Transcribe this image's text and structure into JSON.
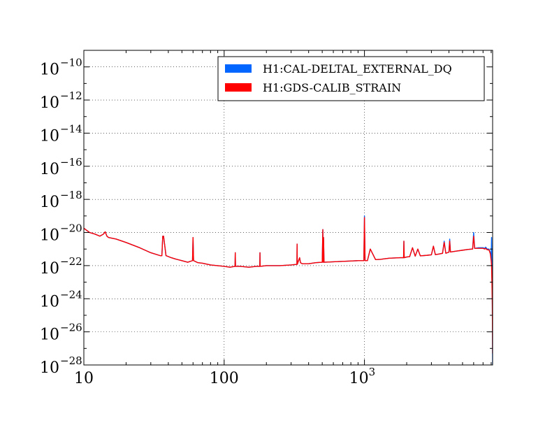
{
  "chart_data": {
    "type": "line",
    "title": "",
    "xlabel": "",
    "ylabel": "",
    "x_scale": "log",
    "y_scale": "log",
    "xlim": [
      10,
      8192
    ],
    "ylim": [
      1e-28,
      1e-09
    ],
    "grid": true,
    "legend_position": "top-right",
    "x_ticks": [
      {
        "value": 10,
        "label": "10",
        "exp": ""
      },
      {
        "value": 100,
        "label": "100",
        "exp": ""
      },
      {
        "value": 1000,
        "label": "10",
        "exp": "3"
      }
    ],
    "y_ticks": [
      {
        "value": 1e-10,
        "label": "10",
        "exp": "−10"
      },
      {
        "value": 1e-12,
        "label": "10",
        "exp": "−12"
      },
      {
        "value": 1e-14,
        "label": "10",
        "exp": "−14"
      },
      {
        "value": 1e-16,
        "label": "10",
        "exp": "−16"
      },
      {
        "value": 1e-18,
        "label": "10",
        "exp": "−18"
      },
      {
        "value": 1e-20,
        "label": "10",
        "exp": "−20"
      },
      {
        "value": 1e-22,
        "label": "10",
        "exp": "−22"
      },
      {
        "value": 1e-24,
        "label": "10",
        "exp": "−24"
      },
      {
        "value": 1e-26,
        "label": "10",
        "exp": "−26"
      },
      {
        "value": 1e-28,
        "label": "10",
        "exp": "−28"
      }
    ],
    "series": [
      {
        "name": "H1:CAL-DELTAL_EXTERNAL_DQ",
        "color": "#0066ff",
        "x": [
          10,
          11,
          12,
          13,
          13.8,
          14.2,
          14.6,
          15,
          17,
          20,
          25,
          30,
          35,
          36,
          36.5,
          37,
          37.6,
          38.5,
          42,
          45,
          50,
          55,
          59.5,
          60,
          60.5,
          65,
          70,
          80,
          100,
          110,
          119.5,
          120,
          120.5,
          130,
          150,
          170,
          179.5,
          180,
          180.5,
          200,
          250,
          300,
          330,
          331,
          332,
          345,
          350,
          360,
          400,
          450,
          500,
          505,
          508,
          511,
          515,
          600,
          700,
          800,
          900,
          990,
          1000,
          1010,
          1050,
          1100,
          1200,
          1300,
          1400,
          1500,
          1800,
          1900,
          1910,
          1920,
          2000,
          2100,
          2200,
          2300,
          2400,
          2500,
          2800,
          3000,
          3100,
          3200,
          3400,
          3600,
          3700,
          3800,
          4000,
          4050,
          4100,
          4500,
          5000,
          5500,
          5900,
          6000,
          6100,
          6500,
          7000,
          7200,
          7300,
          7500,
          7700,
          7800,
          7900,
          8000,
          8050,
          8100,
          8150,
          8192
        ],
        "y": [
          1.8e-20,
          1e-20,
          8e-21,
          6e-21,
          8e-21,
          1.1e-20,
          6e-21,
          5e-21,
          4e-21,
          2.5e-21,
          1.2e-21,
          6e-22,
          4e-22,
          4e-22,
          6e-21,
          6e-21,
          2e-21,
          4e-22,
          3e-22,
          2.5e-22,
          2e-22,
          1.6e-22,
          2e-22,
          5e-21,
          2e-22,
          1.5e-22,
          1.4e-22,
          1.1e-22,
          9e-23,
          8e-23,
          9e-23,
          6e-22,
          9e-23,
          9e-23,
          8e-23,
          9e-23,
          9e-23,
          6e-22,
          9e-23,
          1e-22,
          1e-22,
          1.1e-22,
          1.2e-22,
          2e-21,
          1.2e-22,
          3e-22,
          1.5e-22,
          1.3e-22,
          1.3e-22,
          1.5e-22,
          1.6e-22,
          1.5e-20,
          1.6e-22,
          5e-21,
          1.6e-22,
          1.7e-22,
          1.8e-22,
          1.9e-22,
          2e-22,
          2e-22,
          1e-19,
          2e-22,
          2e-22,
          1e-21,
          2.3e-22,
          2.4e-22,
          2.6e-22,
          2.8e-22,
          3e-22,
          3e-22,
          3e-21,
          3e-22,
          3.3e-22,
          3.5e-22,
          1.2e-21,
          3.7e-22,
          1e-21,
          3.9e-22,
          4.2e-22,
          4.5e-22,
          1.5e-21,
          4.6e-22,
          5e-22,
          5.5e-22,
          3e-21,
          5.6e-22,
          6.5e-22,
          4e-21,
          6.6e-22,
          7.5e-22,
          8.5e-22,
          9.5e-22,
          1e-21,
          1e-20,
          1.1e-21,
          1.2e-21,
          1.2e-21,
          1.1e-21,
          1.3e-21,
          1e-21,
          1e-21,
          8e-22,
          6e-22,
          3e-22,
          5e-21,
          2e-23,
          1e-24,
          1e-28
        ]
      },
      {
        "name": "H1:GDS-CALIB_STRAIN",
        "color": "#ff0000",
        "x": [
          10,
          11,
          12,
          13,
          13.8,
          14.2,
          14.6,
          15,
          17,
          20,
          25,
          30,
          35,
          36,
          36.5,
          37,
          37.6,
          38.5,
          42,
          45,
          50,
          55,
          59.5,
          60,
          60.5,
          65,
          70,
          80,
          100,
          110,
          119.5,
          120,
          120.5,
          130,
          150,
          170,
          179.5,
          180,
          180.5,
          200,
          250,
          300,
          330,
          331,
          332,
          345,
          350,
          360,
          400,
          450,
          500,
          505,
          508,
          511,
          515,
          600,
          700,
          800,
          900,
          990,
          1000,
          1010,
          1050,
          1100,
          1200,
          1300,
          1400,
          1500,
          1800,
          1900,
          1910,
          1920,
          2000,
          2100,
          2200,
          2300,
          2400,
          2500,
          2800,
          3000,
          3100,
          3200,
          3400,
          3600,
          3700,
          3800,
          4000,
          4050,
          4100,
          4500,
          5000,
          5500,
          5900,
          6000,
          6100,
          6500,
          7000,
          7200,
          7300,
          7500,
          7700,
          7800,
          7900,
          8000,
          8050,
          8100,
          8150,
          8192
        ],
        "y": [
          1.8e-20,
          1e-20,
          8e-21,
          6e-21,
          8e-21,
          1.1e-20,
          6e-21,
          5e-21,
          4e-21,
          2.5e-21,
          1.2e-21,
          6e-22,
          4e-22,
          4e-22,
          6e-21,
          6e-21,
          2e-21,
          4e-22,
          3e-22,
          2.5e-22,
          2e-22,
          1.6e-22,
          2e-22,
          5e-21,
          2e-22,
          1.5e-22,
          1.4e-22,
          1.1e-22,
          9e-23,
          8e-23,
          9e-23,
          6e-22,
          9e-23,
          9e-23,
          8e-23,
          9e-23,
          9e-23,
          6e-22,
          9e-23,
          1e-22,
          1e-22,
          1.1e-22,
          1.2e-22,
          2e-21,
          1.2e-22,
          3e-22,
          1.5e-22,
          1.3e-22,
          1.3e-22,
          1.5e-22,
          1.6e-22,
          1.5e-20,
          1.6e-22,
          5e-21,
          1.6e-22,
          1.7e-22,
          1.8e-22,
          1.9e-22,
          2e-22,
          2e-22,
          8e-20,
          2e-22,
          2e-22,
          1e-21,
          2.3e-22,
          2.4e-22,
          2.6e-22,
          2.8e-22,
          3e-22,
          3e-22,
          3e-21,
          3e-22,
          3.3e-22,
          3.5e-22,
          1.2e-21,
          3.7e-22,
          1e-21,
          3.9e-22,
          4.2e-22,
          4.5e-22,
          1.5e-21,
          4.6e-22,
          5e-22,
          5.5e-22,
          2.5e-21,
          5.6e-22,
          6.5e-22,
          3e-21,
          6.6e-22,
          7.5e-22,
          8.5e-22,
          9.5e-22,
          1e-21,
          6e-21,
          1.1e-21,
          1.1e-21,
          1.1e-21,
          1e-21,
          1.1e-21,
          9e-22,
          9e-22,
          7e-22,
          5e-22,
          2e-22,
          1e-22,
          1e-23,
          5e-25,
          5e-28
        ]
      }
    ]
  }
}
